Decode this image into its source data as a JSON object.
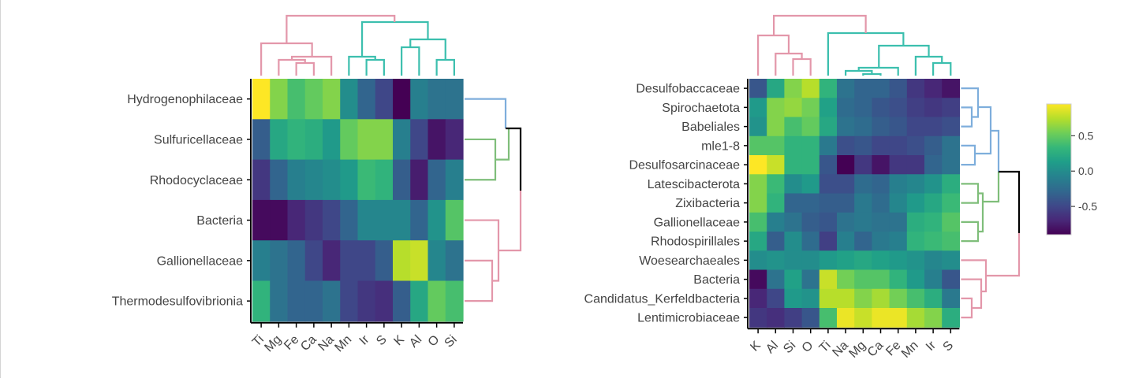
{
  "colors": {
    "cluster_pink": "#e397aa",
    "cluster_teal": "#3cbfae",
    "cluster_blue": "#7eaedc",
    "cluster_green": "#7fbe7a",
    "cluster_root": "#000000",
    "axis": "#000000",
    "viridis": [
      "#440154",
      "#482878",
      "#3e4989",
      "#31688e",
      "#26828e",
      "#1f9e89",
      "#35b779",
      "#6ece58",
      "#b5de2b",
      "#fde725"
    ]
  },
  "colorbar": {
    "min": -0.9,
    "max": 0.95,
    "ticks": [
      0.5,
      0.0,
      -0.5
    ],
    "tick_labels": [
      "0.5",
      "0.0",
      "-0.5"
    ]
  },
  "chart_data": [
    {
      "type": "heatmap",
      "rows": [
        "Hydrogenophilaceae",
        "Sulfuricellaceae",
        "Rhodocyclaceae",
        "Bacteria",
        "Gallionellaceae",
        "Thermodesulfovibrionia"
      ],
      "columns": [
        "Ti",
        "Mg",
        "Fe",
        "Ca",
        "Na",
        "Mn",
        "Ir",
        "S",
        "K",
        "Al",
        "O",
        "Si"
      ],
      "values": [
        [
          0.95,
          0.6,
          0.4,
          0.5,
          0.6,
          0.0,
          -0.3,
          -0.5,
          -0.9,
          -0.1,
          -0.2,
          -0.2
        ],
        [
          -0.35,
          0.2,
          0.3,
          0.25,
          0.1,
          0.5,
          0.6,
          0.6,
          -0.1,
          -0.5,
          -0.8,
          -0.7
        ],
        [
          -0.6,
          -0.3,
          -0.1,
          -0.05,
          0.0,
          0.1,
          0.35,
          0.3,
          -0.35,
          -0.75,
          -0.3,
          -0.1
        ],
        [
          -0.85,
          -0.85,
          -0.7,
          -0.6,
          -0.5,
          -0.3,
          -0.05,
          -0.05,
          -0.05,
          -0.3,
          0.05,
          0.45
        ],
        [
          -0.1,
          -0.2,
          -0.3,
          -0.5,
          -0.7,
          -0.5,
          -0.5,
          -0.35,
          0.75,
          0.8,
          -0.05,
          -0.2
        ],
        [
          0.3,
          -0.2,
          -0.3,
          -0.3,
          -0.2,
          -0.5,
          -0.6,
          -0.65,
          -0.35,
          0.2,
          0.5,
          0.4
        ]
      ],
      "row_dendrogram_colors": [
        "cluster_blue",
        "cluster_green",
        "cluster_pink"
      ],
      "col_dendrogram_colors": [
        "cluster_pink",
        "cluster_teal"
      ]
    },
    {
      "type": "heatmap",
      "rows": [
        "Desulfobaccaceae",
        "Spirochaetota",
        "Babeliales",
        "mle1-8",
        "Desulfosarcinaceae",
        "Latescibacterota",
        "Zixibacteria",
        "Gallionellaceae",
        "Rhodospirillales",
        "Woesearchaeales",
        "Bacteria",
        "Candidatus_Kerfeldbacteria",
        "Lentimicrobiaceae"
      ],
      "columns": [
        "K",
        "Al",
        "Si",
        "O",
        "Ti",
        "Na",
        "Mg",
        "Ca",
        "Fe",
        "Mn",
        "Ir",
        "S"
      ],
      "values": [
        [
          -0.4,
          0.2,
          0.6,
          0.75,
          0.3,
          -0.2,
          -0.3,
          -0.3,
          -0.4,
          -0.6,
          -0.7,
          -0.8
        ],
        [
          0.1,
          0.6,
          0.65,
          0.55,
          0.15,
          -0.25,
          -0.3,
          -0.4,
          -0.45,
          -0.55,
          -0.6,
          -0.55
        ],
        [
          0.05,
          0.6,
          0.4,
          0.5,
          0.2,
          -0.2,
          -0.25,
          -0.35,
          -0.4,
          -0.5,
          -0.5,
          -0.45
        ],
        [
          0.45,
          0.45,
          0.3,
          0.3,
          -0.15,
          -0.45,
          -0.4,
          -0.5,
          -0.5,
          -0.45,
          -0.35,
          -0.2
        ],
        [
          0.95,
          0.8,
          0.3,
          0.3,
          -0.4,
          -0.9,
          -0.6,
          -0.8,
          -0.6,
          -0.6,
          -0.3,
          -0.2
        ],
        [
          0.6,
          0.35,
          0.0,
          0.1,
          -0.45,
          -0.45,
          -0.25,
          -0.3,
          -0.1,
          -0.05,
          0.05,
          0.25
        ],
        [
          0.6,
          0.3,
          -0.3,
          -0.3,
          -0.35,
          -0.35,
          -0.15,
          -0.25,
          -0.05,
          0.1,
          0.2,
          0.35
        ],
        [
          0.4,
          -0.1,
          -0.2,
          -0.35,
          -0.4,
          -0.2,
          -0.15,
          -0.2,
          -0.2,
          0.25,
          0.3,
          0.45
        ],
        [
          0.2,
          -0.35,
          0.0,
          -0.25,
          -0.55,
          -0.1,
          -0.3,
          -0.15,
          -0.1,
          0.3,
          0.35,
          0.4
        ],
        [
          0.0,
          0.05,
          0.0,
          0.0,
          0.1,
          0.15,
          0.2,
          0.15,
          0.1,
          0.05,
          -0.05,
          0.0
        ],
        [
          -0.85,
          -0.2,
          0.15,
          -0.2,
          0.8,
          0.55,
          0.45,
          0.45,
          0.3,
          0.1,
          -0.1,
          -0.4
        ],
        [
          -0.7,
          -0.5,
          0.1,
          0.05,
          0.75,
          0.75,
          0.6,
          0.7,
          0.55,
          0.4,
          0.25,
          -0.15
        ],
        [
          -0.6,
          -0.65,
          -0.55,
          -0.4,
          0.4,
          0.9,
          0.8,
          0.9,
          0.9,
          0.7,
          0.6,
          0.25
        ]
      ],
      "row_dendrogram_colors": [
        "cluster_blue",
        "cluster_green",
        "cluster_pink"
      ],
      "col_dendrogram_colors": [
        "cluster_pink",
        "cluster_teal"
      ]
    }
  ]
}
